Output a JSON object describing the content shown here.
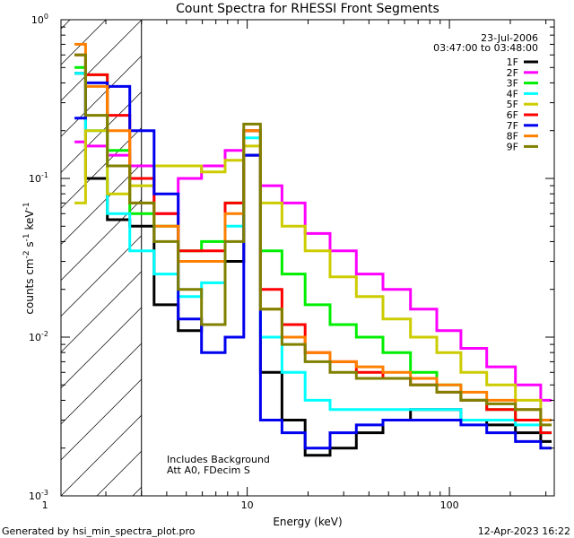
{
  "chart_data": {
    "type": "line",
    "title": "Count Spectra for RHESSI Front Segments",
    "xlabel": "Energy (keV)",
    "ylabel_parts": {
      "base": "counts cm",
      "exp1": "-2",
      "mid": " s",
      "exp2": "-1",
      "end": " keV",
      "exp3": "-1"
    },
    "xscale": "log",
    "yscale": "log",
    "xlim": [
      1.2,
      330
    ],
    "ylim": [
      0.001,
      1.0
    ],
    "x_tick_labels": [
      {
        "value": 1,
        "label": "1"
      },
      {
        "value": 10,
        "label": "10"
      },
      {
        "value": 100,
        "label": "100"
      }
    ],
    "y_tick_labels": [
      {
        "value": 1,
        "base": "10",
        "exp": "0"
      },
      {
        "value": 0.1,
        "base": "10",
        "exp": "-1"
      },
      {
        "value": 0.01,
        "base": "10",
        "exp": "-2"
      },
      {
        "value": 0.001,
        "base": "10",
        "exp": "-3"
      }
    ],
    "date_text": "23-Jul-2006",
    "time_range_text": "03:47:00 to 03:48:00",
    "annotation_lines": [
      "Includes Background",
      "Att A0, FDecim S"
    ],
    "excluded_region_upper_keV": 3,
    "legend_placement": "top-right",
    "series": [
      {
        "name": "1F",
        "color": "#000000",
        "x": [
          1.4,
          1.8,
          2.3,
          3.0,
          4.0,
          5.2,
          6.8,
          8.9,
          10.4,
          13,
          17,
          22,
          30,
          40,
          55,
          75,
          100,
          130,
          180,
          250,
          320
        ],
        "values": [
          0.46,
          0.1,
          0.055,
          0.05,
          0.016,
          0.011,
          0.012,
          0.03,
          0.14,
          0.006,
          0.003,
          0.0018,
          0.002,
          0.0025,
          0.003,
          0.0035,
          0.0035,
          0.003,
          0.0028,
          0.0025,
          0.0022
        ]
      },
      {
        "name": "2F",
        "color": "#ff00ff",
        "x": [
          1.4,
          1.8,
          2.3,
          3.0,
          4.0,
          5.2,
          6.8,
          8.9,
          10.4,
          13,
          17,
          22,
          30,
          40,
          55,
          75,
          100,
          130,
          180,
          250,
          320
        ],
        "values": [
          0.17,
          0.16,
          0.14,
          0.12,
          0.06,
          0.1,
          0.12,
          0.15,
          0.2,
          0.09,
          0.07,
          0.045,
          0.035,
          0.025,
          0.02,
          0.015,
          0.011,
          0.0085,
          0.0065,
          0.005,
          0.004
        ]
      },
      {
        "name": "3F",
        "color": "#00ee00",
        "x": [
          1.4,
          1.8,
          2.3,
          3.0,
          4.0,
          5.2,
          6.8,
          8.9,
          10.4,
          13,
          17,
          22,
          30,
          40,
          55,
          75,
          100,
          130,
          180,
          250,
          320
        ],
        "values": [
          0.5,
          0.45,
          0.15,
          0.06,
          0.05,
          0.035,
          0.04,
          0.07,
          0.2,
          0.035,
          0.025,
          0.016,
          0.012,
          0.01,
          0.008,
          0.006,
          0.005,
          0.004,
          0.0035,
          0.003,
          0.0025
        ]
      },
      {
        "name": "4F",
        "color": "#00ffff",
        "x": [
          1.4,
          1.8,
          2.3,
          3.0,
          4.0,
          5.2,
          6.8,
          8.9,
          10.4,
          13,
          17,
          22,
          30,
          40,
          55,
          75,
          100,
          130,
          180,
          250,
          320
        ],
        "values": [
          0.46,
          0.2,
          0.06,
          0.035,
          0.025,
          0.018,
          0.022,
          0.05,
          0.18,
          0.01,
          0.006,
          0.004,
          0.0035,
          0.0035,
          0.0035,
          0.0035,
          0.0035,
          0.003,
          0.003,
          0.0028,
          0.0025
        ]
      },
      {
        "name": "5F",
        "color": "#cccc00",
        "x": [
          1.4,
          1.8,
          2.3,
          3.0,
          4.0,
          5.2,
          6.8,
          8.9,
          10.4,
          13,
          17,
          22,
          30,
          40,
          55,
          75,
          100,
          130,
          180,
          250,
          320
        ],
        "values": [
          0.07,
          0.2,
          0.08,
          0.09,
          0.12,
          0.12,
          0.11,
          0.13,
          0.16,
          0.07,
          0.05,
          0.035,
          0.024,
          0.018,
          0.013,
          0.01,
          0.008,
          0.006,
          0.005,
          0.004,
          0.003
        ]
      },
      {
        "name": "6F",
        "color": "#ff0000",
        "x": [
          1.4,
          1.8,
          2.3,
          3.0,
          4.0,
          5.2,
          6.8,
          8.9,
          10.4,
          13,
          17,
          22,
          30,
          40,
          55,
          75,
          100,
          130,
          180,
          250,
          320
        ],
        "values": [
          0.6,
          0.45,
          0.25,
          0.1,
          0.06,
          0.035,
          0.035,
          0.07,
          0.2,
          0.02,
          0.012,
          0.008,
          0.007,
          0.006,
          0.0055,
          0.005,
          0.0045,
          0.004,
          0.0035,
          0.003,
          0.0025
        ]
      },
      {
        "name": "7F",
        "color": "#0000ee",
        "x": [
          1.4,
          1.8,
          2.3,
          3.0,
          4.0,
          5.2,
          6.8,
          8.9,
          10.4,
          13,
          17,
          22,
          30,
          40,
          55,
          75,
          100,
          130,
          180,
          250,
          320
        ],
        "values": [
          0.24,
          0.4,
          0.38,
          0.2,
          0.08,
          0.013,
          0.008,
          0.01,
          0.14,
          0.003,
          0.0025,
          0.002,
          0.0025,
          0.0028,
          0.003,
          0.003,
          0.003,
          0.0028,
          0.0025,
          0.0022,
          0.002
        ]
      },
      {
        "name": "8F",
        "color": "#ff7f00",
        "x": [
          1.4,
          1.8,
          2.3,
          3.0,
          4.0,
          5.2,
          6.8,
          8.9,
          10.4,
          13,
          17,
          22,
          30,
          40,
          55,
          75,
          100,
          130,
          180,
          250,
          320
        ],
        "values": [
          0.7,
          0.38,
          0.2,
          0.07,
          0.05,
          0.03,
          0.03,
          0.06,
          0.2,
          0.015,
          0.01,
          0.008,
          0.007,
          0.0065,
          0.006,
          0.0055,
          0.005,
          0.0045,
          0.004,
          0.0035,
          0.003
        ]
      },
      {
        "name": "9F",
        "color": "#808000",
        "x": [
          1.4,
          1.8,
          2.3,
          3.0,
          4.0,
          5.2,
          6.8,
          8.9,
          10.4,
          13,
          17,
          22,
          30,
          40,
          55,
          75,
          100,
          130,
          180,
          250,
          320
        ],
        "values": [
          0.6,
          0.25,
          0.12,
          0.07,
          0.04,
          0.02,
          0.012,
          0.04,
          0.22,
          0.015,
          0.009,
          0.007,
          0.006,
          0.0055,
          0.0055,
          0.005,
          0.0045,
          0.004,
          0.0038,
          0.0035,
          0.0028
        ]
      }
    ]
  },
  "footer": {
    "left": "Generated by hsi_min_spectra_plot.pro",
    "right": "12-Apr-2023 16:22"
  }
}
